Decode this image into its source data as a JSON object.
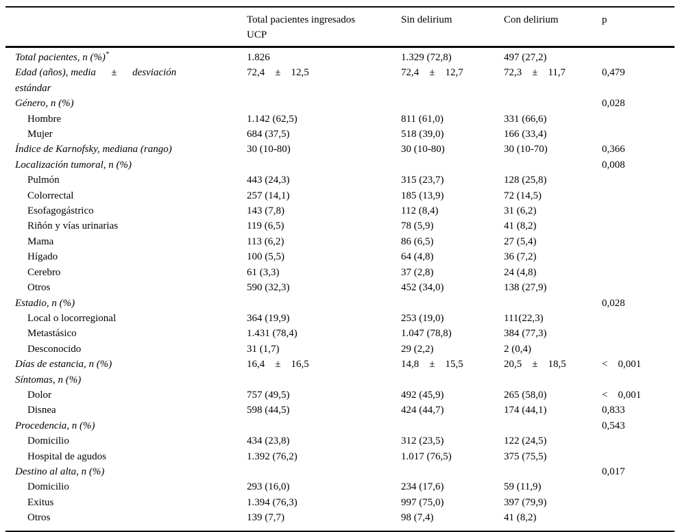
{
  "table": {
    "headers": {
      "col_label": "",
      "col_total": "Total pacientes ingresados UCP",
      "col_sin": "Sin delirium",
      "col_con": "Con delirium",
      "col_p": "p"
    },
    "rows": [
      {
        "label": "Total pacientes, n (%)",
        "sup": "*",
        "italic": true,
        "indent": false,
        "total": "1.826",
        "sin": "1.329 (72,8)",
        "con": "497 (27,2)",
        "p": ""
      },
      {
        "label": "Edad (años), media      ±      desviación\nestándar",
        "sup": "",
        "italic": true,
        "indent": false,
        "total": "72,4    ±    12,5",
        "sin": "72,4    ±    12,7",
        "con": "72,3    ±    11,7",
        "p": "0,479"
      },
      {
        "label": "Género, n (%)",
        "sup": "",
        "italic": true,
        "indent": false,
        "total": "",
        "sin": "",
        "con": "",
        "p": "0,028"
      },
      {
        "label": "Hombre",
        "sup": "",
        "italic": false,
        "indent": true,
        "total": "1.142 (62,5)",
        "sin": "811 (61,0)",
        "con": "331 (66,6)",
        "p": ""
      },
      {
        "label": "Mujer",
        "sup": "",
        "italic": false,
        "indent": true,
        "total": "684 (37,5)",
        "sin": "518 (39,0)",
        "con": "166 (33,4)",
        "p": ""
      },
      {
        "label": "Índice de Karnofsky, mediana (rango)",
        "sup": "",
        "italic": true,
        "indent": false,
        "total": "30 (10-80)",
        "sin": "30 (10-80)",
        "con": "30 (10-70)",
        "p": "0,366"
      },
      {
        "label": "Localización tumoral, n (%)",
        "sup": "",
        "italic": true,
        "indent": false,
        "total": "",
        "sin": "",
        "con": "",
        "p": "0,008"
      },
      {
        "label": "Pulmón",
        "sup": "",
        "italic": false,
        "indent": true,
        "total": "443 (24,3)",
        "sin": "315 (23,7)",
        "con": "128 (25,8)",
        "p": ""
      },
      {
        "label": "Colorrectal",
        "sup": "",
        "italic": false,
        "indent": true,
        "total": "257 (14,1)",
        "sin": "185 (13,9)",
        "con": "72 (14,5)",
        "p": ""
      },
      {
        "label": "Esofagogástrico",
        "sup": "",
        "italic": false,
        "indent": true,
        "total": "143 (7,8)",
        "sin": "112 (8,4)",
        "con": "31 (6,2)",
        "p": ""
      },
      {
        "label": "Riñón y vías urinarias",
        "sup": "",
        "italic": false,
        "indent": true,
        "total": "119 (6,5)",
        "sin": "78 (5,9)",
        "con": "41 (8,2)",
        "p": ""
      },
      {
        "label": "Mama",
        "sup": "",
        "italic": false,
        "indent": true,
        "total": "113 (6,2)",
        "sin": "86 (6,5)",
        "con": "27 (5,4)",
        "p": ""
      },
      {
        "label": "Hígado",
        "sup": "",
        "italic": false,
        "indent": true,
        "total": "100 (5,5)",
        "sin": "64 (4,8)",
        "con": "36 (7,2)",
        "p": ""
      },
      {
        "label": "Cerebro",
        "sup": "",
        "italic": false,
        "indent": true,
        "total": "61 (3,3)",
        "sin": "37 (2,8)",
        "con": "24 (4,8)",
        "p": ""
      },
      {
        "label": "Otros",
        "sup": "",
        "italic": false,
        "indent": true,
        "total": "590 (32,3)",
        "sin": "452 (34,0)",
        "con": "138 (27,9)",
        "p": ""
      },
      {
        "label": "Estadio, n (%)",
        "sup": "",
        "italic": true,
        "indent": false,
        "total": "",
        "sin": "",
        "con": "",
        "p": "0,028"
      },
      {
        "label": "Local o locorregional",
        "sup": "",
        "italic": false,
        "indent": true,
        "total": "364 (19,9)",
        "sin": "253 (19,0)",
        "con": "111(22,3)",
        "p": ""
      },
      {
        "label": "Metastásico",
        "sup": "",
        "italic": false,
        "indent": true,
        "total": "1.431 (78,4)",
        "sin": "1.047 (78,8)",
        "con": "384 (77,3)",
        "p": ""
      },
      {
        "label": "Desconocido",
        "sup": "",
        "italic": false,
        "indent": true,
        "total": "31 (1,7)",
        "sin": "29 (2,2)",
        "con": "2 (0,4)",
        "p": ""
      },
      {
        "label": "Días de estancia, n (%)",
        "sup": "",
        "italic": true,
        "indent": false,
        "total": "16,4    ±    16,5",
        "sin": "14,8    ±    15,5",
        "con": "20,5    ±    18,5",
        "p": "<    0,001"
      },
      {
        "label": "Síntomas, n (%)",
        "sup": "",
        "italic": true,
        "indent": false,
        "total": "",
        "sin": "",
        "con": "",
        "p": ""
      },
      {
        "label": "Dolor",
        "sup": "",
        "italic": false,
        "indent": true,
        "total": "757 (49,5)",
        "sin": "492 (45,9)",
        "con": "265 (58,0)",
        "p": "<    0,001"
      },
      {
        "label": "Disnea",
        "sup": "",
        "italic": false,
        "indent": true,
        "total": "598 (44,5)",
        "sin": "424 (44,7)",
        "con": "174 (44,1)",
        "p": "0,833"
      },
      {
        "label": "Procedencia, n (%)",
        "sup": "",
        "italic": true,
        "indent": false,
        "total": "",
        "sin": "",
        "con": "",
        "p": "0,543"
      },
      {
        "label": "Domicilio",
        "sup": "",
        "italic": false,
        "indent": true,
        "total": "434 (23,8)",
        "sin": "312 (23,5)",
        "con": "122 (24,5)",
        "p": ""
      },
      {
        "label": "Hospital de agudos",
        "sup": "",
        "italic": false,
        "indent": true,
        "total": "1.392 (76,2)",
        "sin": "1.017 (76,5)",
        "con": "375 (75,5)",
        "p": ""
      },
      {
        "label": "Destino al alta, n (%)",
        "sup": "",
        "italic": true,
        "indent": false,
        "total": "",
        "sin": "",
        "con": "",
        "p": "0,017"
      },
      {
        "label": "Domicilio",
        "sup": "",
        "italic": false,
        "indent": true,
        "total": "293 (16,0)",
        "sin": "234 (17,6)",
        "con": "59 (11,9)",
        "p": ""
      },
      {
        "label": "Exitus",
        "sup": "",
        "italic": false,
        "indent": true,
        "total": "1.394 (76,3)",
        "sin": "997 (75,0)",
        "con": "397 (79,9)",
        "p": ""
      },
      {
        "label": "Otros",
        "sup": "",
        "italic": false,
        "indent": true,
        "total": "139 (7,7)",
        "sin": "98 (7,4)",
        "con": "41 (8,2)",
        "p": ""
      }
    ]
  }
}
